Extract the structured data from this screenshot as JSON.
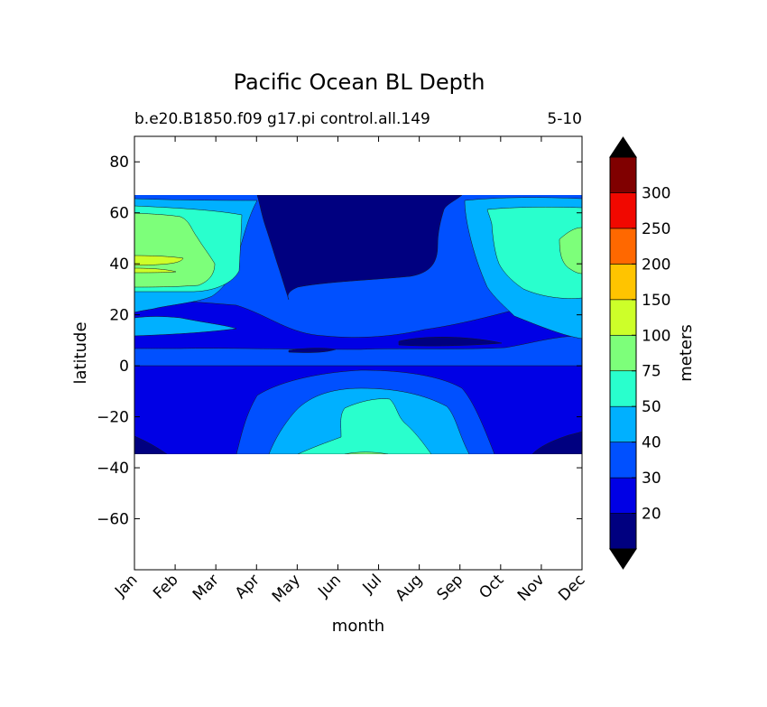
{
  "chart_data": {
    "type": "heatmap",
    "plot_kind": "filled contour",
    "title": "Pacific Ocean BL Depth",
    "subtitle_left": "b.e20.B1850.f09 g17.pi control.all.149",
    "subtitle_right": "5-10",
    "xlabel": "month",
    "ylabel": "latitude",
    "x_categories": [
      "Jan",
      "Feb",
      "Mar",
      "Apr",
      "May",
      "Jun",
      "Jul",
      "Aug",
      "Sep",
      "Oct",
      "Nov",
      "Dec"
    ],
    "y_ticks": [
      "80",
      "60",
      "40",
      "20",
      "0",
      "−20",
      "−40",
      "−60"
    ],
    "ylim": [
      -80,
      90
    ],
    "data_lat_range": [
      -34,
      67
    ],
    "grid": false,
    "colorbar": {
      "label": "meters",
      "position": "right",
      "extend": "both",
      "tick_labels": [
        "20",
        "30",
        "40",
        "50",
        "75",
        "100",
        "150",
        "200",
        "250",
        "300"
      ],
      "levels": [
        10,
        20,
        30,
        40,
        50,
        75,
        100,
        150,
        200,
        250,
        300,
        350
      ],
      "colors": [
        "#000080",
        "#0000e5",
        "#0050ff",
        "#00b0ff",
        "#29ffcd",
        "#7dff7a",
        "#cdff29",
        "#ffc400",
        "#ff6800",
        "#f10800",
        "#800000"
      ],
      "under_color": "#000000",
      "over_color": "#000000"
    },
    "regions": [
      {
        "level": "30-40",
        "description": "Background band across all months, roughly 30 to 40 m"
      },
      {
        "level": "20-30",
        "description": "Tropical and subtropical band ~25N to 5N and 0 to 35S"
      },
      {
        "level": "10-20",
        "description": "Northern summer (May-Aug) 30N-67N shallow region; thin equatorial streaks; SE corner in Dec-Jan"
      },
      {
        "level": "40-50",
        "description": "Northern winter mid-latitudes and southern winter (Jun-Sep) subtropics"
      },
      {
        "level": "50-75",
        "description": "Jan-Mar and Nov-Dec 30N-60N; Jun-Aug 20S-34S"
      },
      {
        "level": "75-100",
        "description": "Jan-Feb 30N-60N and Dec 35N-55N"
      },
      {
        "level": "100-150",
        "description": "Jan 38N-44N"
      }
    ]
  }
}
